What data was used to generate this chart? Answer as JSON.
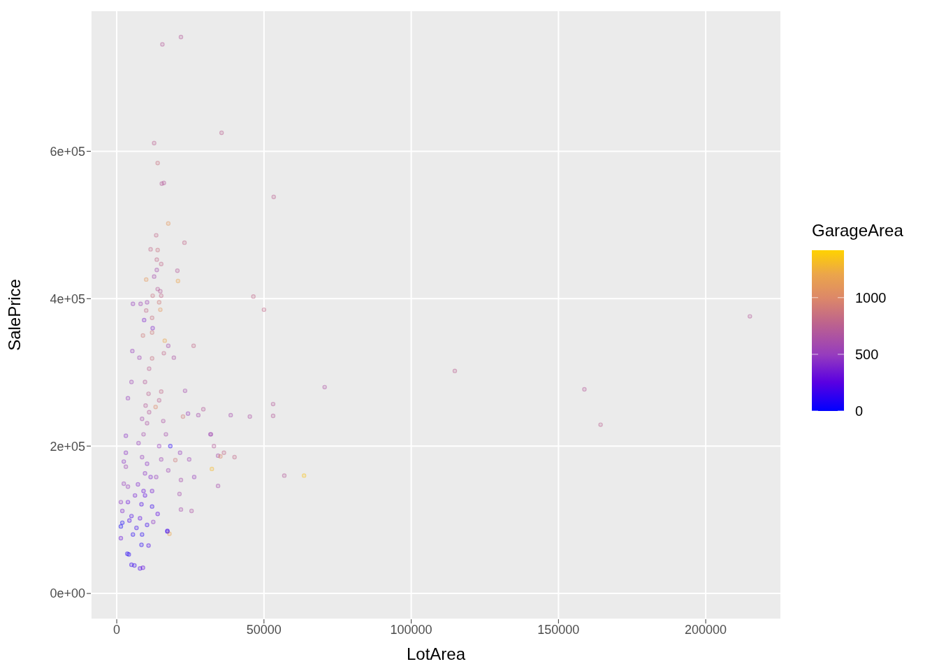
{
  "chart_data": {
    "type": "scatter",
    "xlabel": "LotArea",
    "ylabel": "SalePrice",
    "clabel": "GarageArea",
    "xlim": [
      -8800,
      225600
    ],
    "xticks": [
      0,
      50000,
      100000,
      150000,
      200000
    ],
    "ylim": [
      -35000,
      791000
    ],
    "yticks": [
      {
        "value": 0,
        "label": "0e+00"
      },
      {
        "value": 200000,
        "label": "2e+05"
      },
      {
        "value": 400000,
        "label": "4e+05"
      },
      {
        "value": 600000,
        "label": "6e+05"
      }
    ],
    "clim": [
      0,
      1418
    ],
    "cticks": [
      0,
      500,
      1000
    ],
    "grid": true,
    "marker": "circle",
    "x": [
      21800,
      15500,
      35600,
      12700,
      13900,
      15300,
      16000,
      53300,
      17500,
      13400,
      23000,
      11500,
      13900,
      46400,
      50000,
      215000,
      114800,
      158800,
      164300,
      70600,
      26100,
      29400,
      38700,
      45200,
      53100,
      53100,
      32000,
      33000,
      36400,
      34400,
      40000,
      32300,
      56900,
      63600,
      34400,
      21800,
      21800,
      25400,
      17200,
      17900,
      1400,
      4100,
      3600,
      5000,
      7900,
      8900,
      6000,
      1400,
      1900,
      10800,
      8400,
      5500,
      8600,
      4300,
      12000,
      18200,
      17200,
      2400,
      3100,
      3800,
      5000,
      3100,
      1400,
      1900,
      2400,
      9600,
      9100,
      8400,
      7900,
      9600,
      8600,
      10300,
      11500,
      12000,
      7200,
      6200,
      7400,
      9100,
      10300,
      11000,
      8600,
      9800,
      10800,
      9600,
      11000,
      13200,
      14400,
      15100,
      15800,
      16700,
      14400,
      15100,
      17500,
      13400,
      3800,
      5000,
      6700,
      10300,
      13900,
      12400,
      3100,
      3800,
      21500,
      19900,
      24600,
      24200,
      27700,
      31800,
      26300,
      21300,
      23200,
      22500,
      35200,
      13600,
      15100,
      13600,
      20600,
      10000,
      12700,
      20800,
      13900,
      14800,
      12200,
      15100,
      5500,
      8100,
      10300,
      14400,
      10000,
      14800,
      9300,
      12000,
      12200,
      8900,
      12000,
      16300,
      17500,
      5300,
      16000,
      19400,
      7700,
      12000
    ],
    "values": [
      755000,
      745000,
      625000,
      611000,
      584000,
      556000,
      557000,
      538000,
      502000,
      486000,
      476000,
      467000,
      466000,
      403000,
      385000,
      376000,
      302000,
      277000,
      229000,
      280000,
      336000,
      250000,
      242000,
      240000,
      257000,
      241000,
      216000,
      200000,
      191000,
      187000,
      185000,
      169000,
      160000,
      160000,
      146000,
      154000,
      114000,
      112000,
      85000,
      81000,
      91000,
      53000,
      54000,
      39000,
      34000,
      35000,
      38000,
      75000,
      96000,
      65000,
      66000,
      80000,
      80000,
      99000,
      118000,
      200000,
      84000,
      179000,
      191000,
      265000,
      287000,
      214000,
      124000,
      112000,
      149000,
      133000,
      139000,
      121000,
      102000,
      163000,
      185000,
      176000,
      158000,
      139000,
      148000,
      133000,
      204000,
      216000,
      231000,
      246000,
      237000,
      255000,
      271000,
      287000,
      305000,
      253000,
      262000,
      274000,
      234000,
      216000,
      200000,
      182000,
      167000,
      158000,
      124000,
      105000,
      89000,
      93000,
      108000,
      97000,
      172000,
      145000,
      191000,
      181000,
      182000,
      244000,
      242000,
      216000,
      158000,
      135000,
      275000,
      240000,
      186000,
      453000,
      447000,
      439000,
      438000,
      426000,
      430000,
      424000,
      413000,
      410000,
      404000,
      404000,
      393000,
      393000,
      395000,
      395000,
      384000,
      385000,
      371000,
      374000,
      360000,
      350000,
      354000,
      343000,
      336000,
      329000,
      326000,
      320000,
      320000,
      319000
    ],
    "cvalues": [
      700,
      700,
      750,
      750,
      850,
      700,
      700,
      750,
      1100,
      800,
      800,
      800,
      850,
      800,
      800,
      700,
      750,
      700,
      750,
      650,
      800,
      700,
      600,
      650,
      700,
      700,
      600,
      700,
      800,
      600,
      800,
      1300,
      700,
      1350,
      600,
      600,
      600,
      650,
      200,
      1200,
      50,
      100,
      100,
      150,
      200,
      250,
      150,
      300,
      50,
      200,
      100,
      100,
      100,
      200,
      150,
      100,
      150,
      450,
      450,
      500,
      550,
      450,
      450,
      400,
      500,
      250,
      300,
      200,
      250,
      450,
      500,
      450,
      400,
      350,
      400,
      350,
      500,
      600,
      650,
      700,
      600,
      700,
      750,
      700,
      750,
      1000,
      750,
      800,
      650,
      600,
      500,
      550,
      550,
      500,
      300,
      200,
      150,
      150,
      250,
      450,
      550,
      500,
      500,
      900,
      550,
      500,
      600,
      550,
      500,
      600,
      600,
      900,
      1000,
      800,
      800,
      600,
      700,
      1100,
      600,
      1200,
      700,
      700,
      850,
      800,
      500,
      550,
      550,
      900,
      800,
      1100,
      400,
      850,
      400,
      900,
      900,
      1200,
      600,
      500,
      800,
      650,
      550,
      850
    ]
  }
}
